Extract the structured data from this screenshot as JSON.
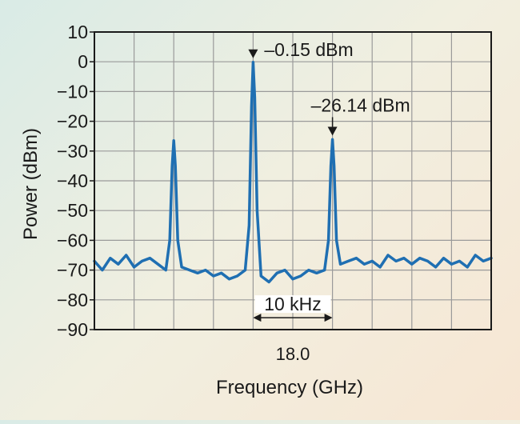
{
  "chart_data": {
    "type": "line",
    "title": "",
    "xlabel": "Frequency (GHz)",
    "ylabel": "Power (dBm)",
    "ylim": [
      -90,
      10
    ],
    "yticks": [
      10,
      0,
      -10,
      -20,
      -30,
      -40,
      -50,
      -60,
      -70,
      -80,
      -90
    ],
    "xlim": [
      -25,
      25
    ],
    "x_tick_label": "18.0",
    "x_tick_value": 0,
    "x_unit_in_data": "kHz offset",
    "grid": true,
    "line_color": "#1f6fb2",
    "series": [
      {
        "values_sampled": true,
        "x": [
          -25,
          -24,
          -23,
          -22,
          -21,
          -20,
          -19,
          -18,
          -17,
          -16,
          -15.5,
          -15.2,
          -15,
          -14.8,
          -14.5,
          -14,
          -13,
          -12,
          -11,
          -10,
          -9,
          -8,
          -7,
          -6,
          -5.5,
          -5.2,
          -5,
          -4.8,
          -4.5,
          -4,
          -3,
          -2,
          -1,
          0,
          1,
          2,
          3,
          4,
          4.5,
          4.8,
          5,
          5.2,
          5.5,
          6,
          7,
          8,
          9,
          10,
          11,
          12,
          13,
          14,
          15,
          16,
          17,
          18,
          19,
          20,
          21,
          22,
          23,
          24,
          25
        ],
        "y": [
          -67,
          -70,
          -66,
          -68,
          -65,
          -69,
          -67,
          -66,
          -68,
          -70,
          -60,
          -35,
          -26.5,
          -35,
          -60,
          -69,
          -70,
          -71,
          -70,
          -72,
          -71,
          -73,
          -72,
          -70,
          -55,
          -15,
          -0.15,
          -12,
          -50,
          -72,
          -74,
          -71,
          -70,
          -73,
          -72,
          -70,
          -71,
          -70,
          -60,
          -35,
          -26.14,
          -35,
          -60,
          -68,
          -67,
          -66,
          -68,
          -67,
          -69,
          -65,
          -67,
          -66,
          -68,
          -66,
          -67,
          -69,
          -66,
          -68,
          -67,
          -69,
          -65,
          -67,
          -66
        ]
      }
    ],
    "annotations": [
      {
        "text": "–0.15 dBm",
        "x": -5,
        "y": -0.15
      },
      {
        "text": "–26.14 dBm",
        "x": 5,
        "y": -26.14
      },
      {
        "text": "10 kHz",
        "x_from": -5,
        "x_to": 5,
        "y": -86
      }
    ]
  }
}
